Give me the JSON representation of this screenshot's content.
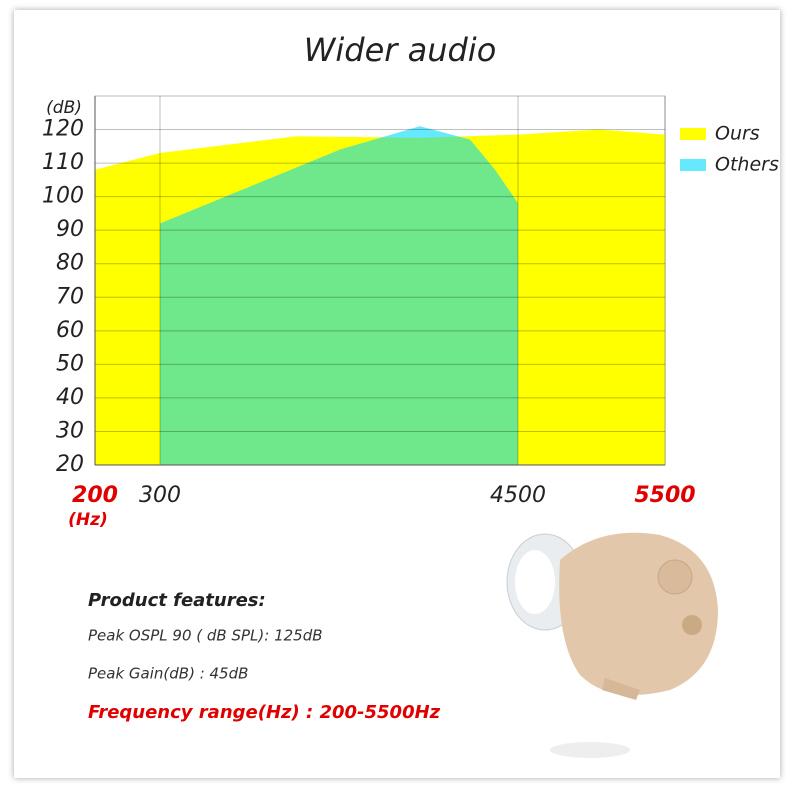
{
  "chart_data": {
    "type": "area",
    "title": "Wider audio",
    "y_label": "(dB)",
    "x_label": "(Hz)",
    "xlim": [
      200,
      5500
    ],
    "xticks": [
      200,
      300,
      4500,
      5500
    ],
    "ylim": [
      20,
      130
    ],
    "yticks": [
      20,
      30,
      40,
      50,
      60,
      70,
      80,
      90,
      100,
      110,
      120
    ],
    "grid": true,
    "legend": "right",
    "series": [
      {
        "name": "Ours",
        "color": "#ffff00",
        "x": [
          200,
          300,
          1900,
          3350,
          4500,
          5050,
          5500
        ],
        "values": [
          108,
          113,
          118,
          117.5,
          118.5,
          120,
          118.5
        ]
      },
      {
        "name": "Others",
        "color": "#66e8ff",
        "x": [
          300,
          1356,
          2412,
          3350,
          3937,
          4230,
          4500
        ],
        "values": [
          92,
          103,
          114,
          121,
          117,
          108,
          98
        ]
      }
    ]
  },
  "features": {
    "heading": "Product features:",
    "items": [
      "Peak OSPL 90 ( dB SPL): 125dB",
      "Peak  Gain(dB) : 45dB"
    ],
    "highlight": "Frequency range(Hz) : 200-5500Hz"
  }
}
